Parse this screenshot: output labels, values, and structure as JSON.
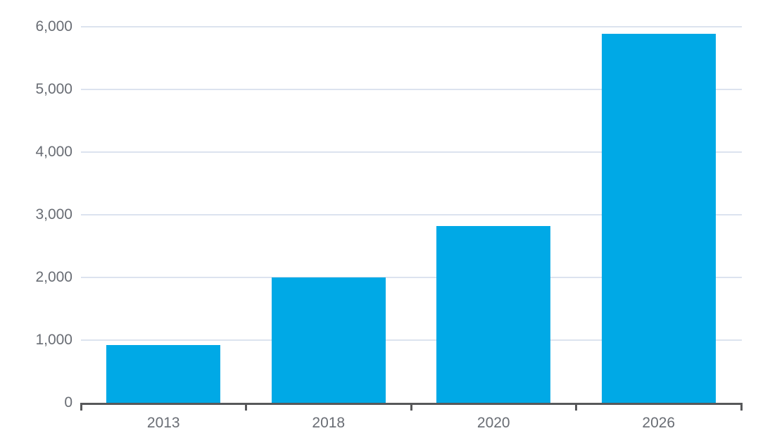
{
  "chart_data": {
    "type": "bar",
    "title": "",
    "xlabel": "",
    "ylabel": "",
    "categories": [
      "2013",
      "2018",
      "2020",
      "2026"
    ],
    "values": [
      920,
      2000,
      2820,
      5890
    ],
    "ylim": [
      0,
      6000
    ],
    "yticks": [
      0,
      1000,
      2000,
      3000,
      4000,
      5000,
      6000
    ],
    "ytick_labels": [
      "0",
      "1,000",
      "2,000",
      "3,000",
      "4,000",
      "5,000",
      "6,000"
    ],
    "grid": true,
    "legend": false,
    "colors": {
      "bar": "#00a9e6",
      "gridline": "#dce3ef",
      "axis": "#57585a",
      "tick_text": "#696d74"
    }
  }
}
